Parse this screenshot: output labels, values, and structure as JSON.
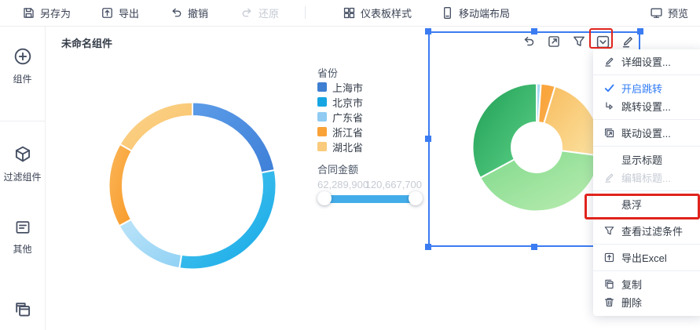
{
  "toolbar": {
    "items": [
      {
        "label": "另存为",
        "icon": "save-icon",
        "disabled": false
      },
      {
        "label": "导出",
        "icon": "export-icon",
        "disabled": false
      },
      {
        "label": "撤销",
        "icon": "undo-icon",
        "disabled": false
      },
      {
        "label": "还原",
        "icon": "redo-icon",
        "disabled": true
      },
      {
        "label": "仪表板样式",
        "icon": "dashboard-style-icon",
        "disabled": false
      },
      {
        "label": "移动端布局",
        "icon": "mobile-layout-icon",
        "disabled": false
      },
      {
        "label": "预览",
        "icon": "preview-icon",
        "disabled": false
      }
    ]
  },
  "sidebar": {
    "items": [
      {
        "label": "组件",
        "icon": "add-component-icon"
      },
      {
        "label": "过滤组件",
        "icon": "filter-component-icon"
      },
      {
        "label": "其他",
        "icon": "other-icon"
      },
      {
        "label": "",
        "icon": "multi-window-icon"
      }
    ]
  },
  "widget": {
    "title": "未命名组件"
  },
  "legend": {
    "title": "省份",
    "items": [
      {
        "label": "上海市",
        "color": "#3E7FD2"
      },
      {
        "label": "北京市",
        "color": "#16A5E2"
      },
      {
        "label": "广东省",
        "color": "#8FCBF2"
      },
      {
        "label": "浙江省",
        "color": "#F9A238"
      },
      {
        "label": "湖北省",
        "color": "#FACB7C"
      }
    ]
  },
  "measure": {
    "label": "合同金额",
    "min": "62,289,900",
    "max": "120,667,700",
    "slider_fill_color": "#44ADE9"
  },
  "widget_toolbar": {
    "icons": [
      "undo-icon",
      "open-link-icon",
      "filter-icon",
      "more-dropdown-icon",
      "edit-icon"
    ]
  },
  "context_menu": {
    "items": [
      {
        "label": "详细设置...",
        "icon": "edit-icon",
        "state": "normal"
      },
      {
        "label": "开启跳转",
        "icon": "check-icon",
        "state": "active"
      },
      {
        "label": "跳转设置...",
        "icon": "jump-icon",
        "state": "normal"
      },
      {
        "label": "联动设置...",
        "icon": "linkage-icon",
        "state": "normal"
      },
      {
        "label": "显示标题",
        "icon": null,
        "state": "normal"
      },
      {
        "label": "编辑标题...",
        "icon": "edit-icon",
        "state": "disabled"
      },
      {
        "label": "悬浮",
        "icon": null,
        "state": "normal",
        "annotated": true
      },
      {
        "label": "查看过滤条件",
        "icon": "filter-icon",
        "state": "normal"
      },
      {
        "label": "导出Excel",
        "icon": "export-excel-icon",
        "state": "normal"
      },
      {
        "label": "复制",
        "icon": "copy-icon",
        "state": "normal"
      },
      {
        "label": "删除",
        "icon": "delete-icon",
        "state": "normal"
      }
    ]
  },
  "colors": {
    "accent_blue": "#2F7BF5",
    "selection_blue": "#3B7CF2",
    "annotation_red": "#E0241D",
    "disabled_gray": "#C6CBD4"
  },
  "chart_data": [
    {
      "type": "donut",
      "name": "province-contract-ring",
      "dimension": "省份",
      "measure": "合同金额",
      "outer_radius": 108,
      "inner_radius": 89,
      "slices": [
        {
          "label": "上海市",
          "percent": 22.0,
          "color_from": "#5C9CE8",
          "color_to": "#3E7FD8"
        },
        {
          "label": "北京市",
          "percent": 30.5,
          "color_from": "#55C9F1",
          "color_to": "#12A8E6"
        },
        {
          "label": "广东省",
          "percent": 14.5,
          "color_from": "#BCE4F9",
          "color_to": "#90D1F4"
        },
        {
          "label": "浙江省",
          "percent": 16.3,
          "color_from": "#FBB659",
          "color_to": "#F79A28"
        },
        {
          "label": "湖北省",
          "percent": 16.7,
          "color_from": "#FBD48E",
          "color_to": "#F9C267"
        }
      ]
    },
    {
      "type": "donut",
      "name": "selected-green-donut",
      "outer_radius": 83,
      "inner_radius": 32,
      "slices": [
        {
          "label": "",
          "percent": 1.1,
          "color_from": "#A9DAF3",
          "color_to": "#A9DAF3"
        },
        {
          "label": "",
          "percent": 3.6,
          "color_from": "#F9A238",
          "color_to": "#FBAD4C"
        },
        {
          "label": "",
          "percent": 22.4,
          "color_from": "#F8BC5E",
          "color_to": "#FBE3A3"
        },
        {
          "label": "",
          "percent": 40.0,
          "color_from": "#7FD98B",
          "color_to": "#BCEDB2"
        },
        {
          "label": "",
          "percent": 32.9,
          "color_from": "#1F9E55",
          "color_to": "#5FD389"
        }
      ]
    }
  ]
}
